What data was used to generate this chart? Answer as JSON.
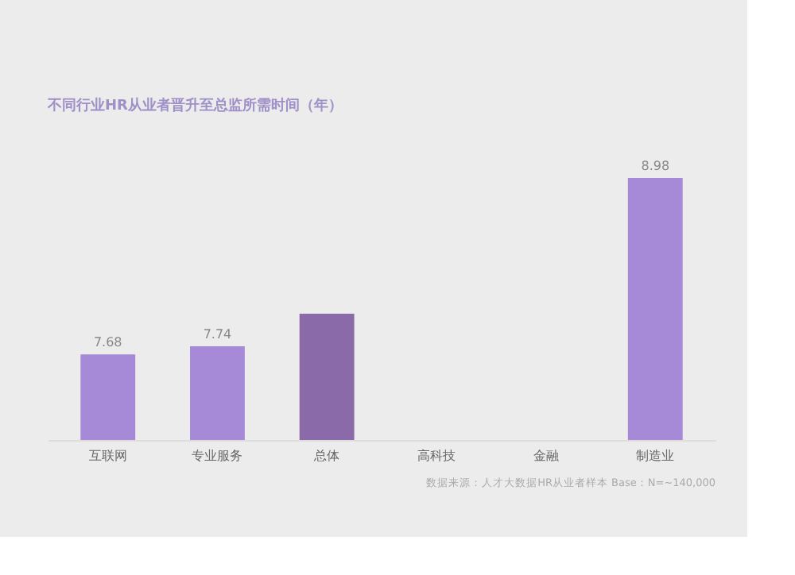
{
  "chart_data": {
    "type": "bar",
    "title": "不同行业HR从业者晋升至总监所需时间（年）",
    "categories": [
      "互联网",
      "专业服务",
      "总体",
      "高科技",
      "金融",
      "制造业"
    ],
    "values": [
      7.68,
      7.74,
      7.98,
      null,
      null,
      8.98
    ],
    "value_labels": [
      "7.68",
      "7.74",
      null,
      null,
      null,
      "8.98"
    ],
    "colors": [
      "#a68ad8",
      "#a68ad8",
      "#8a6aa8",
      "#a68ad8",
      "#a68ad8",
      "#a68ad8"
    ],
    "ylim": [
      7.05,
      8.98
    ],
    "annotations": [
      "数据来源：人才大数据HR从业者样本  Base：N=~140,000"
    ]
  }
}
